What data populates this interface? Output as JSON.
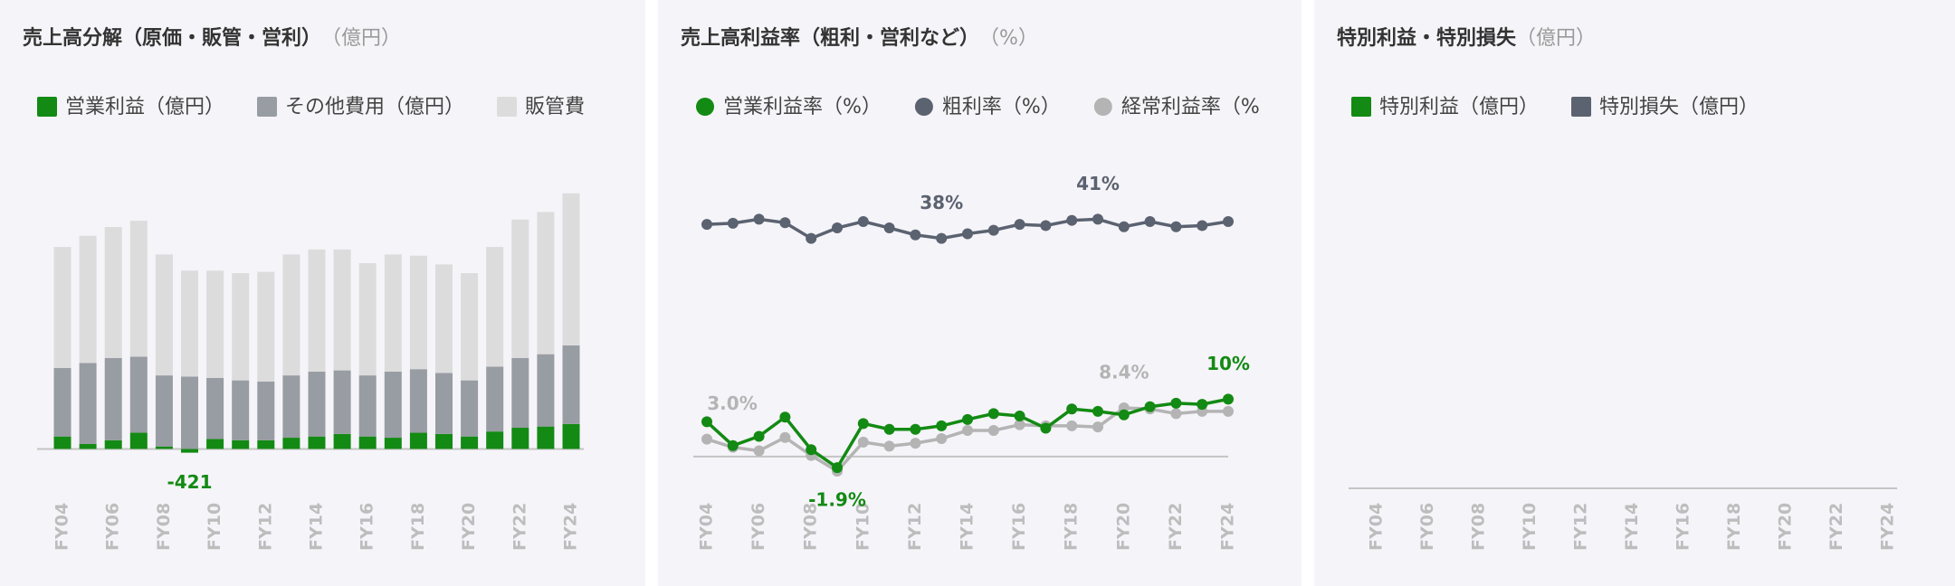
{
  "chart_data": [
    {
      "type": "bar",
      "stacked": true,
      "title": "売上高分解（原価・販管・営利）",
      "unit_label": "（億円）",
      "categories": [
        "FY04",
        null,
        "FY06",
        null,
        "FY08",
        null,
        "FY10",
        null,
        "FY12",
        null,
        "FY14",
        null,
        "FY16",
        null,
        "FY18",
        null,
        "FY20",
        null,
        "FY22",
        null,
        "FY24"
      ],
      "series": [
        {
          "name": "営業利益（億円）",
          "color": "#138a13",
          "values": [
            1400,
            560,
            980,
            1820,
            280,
            -421,
            1120,
            980,
            980,
            1260,
            1400,
            1680,
            1400,
            1260,
            1820,
            1680,
            1400,
            1960,
            2380,
            2520,
            2800
          ],
          "value_labels": [
            null,
            null,
            null,
            null,
            null,
            "-421",
            null,
            null,
            null,
            null,
            null,
            null,
            null,
            null,
            null,
            null,
            null,
            null,
            null,
            null,
            null
          ]
        },
        {
          "name": "その他費用（億円）",
          "color": "#989ca3",
          "values": [
            7700,
            9100,
            9240,
            8540,
            7980,
            8120,
            6860,
            6720,
            6580,
            7000,
            7280,
            7140,
            6860,
            7420,
            7140,
            6860,
            6300,
            7280,
            7840,
            8120,
            8820
          ]
        },
        {
          "name": "販管費",
          "color": "#dcdcdc",
          "values": [
            13580,
            14280,
            14700,
            15260,
            13580,
            11900,
            12040,
            12040,
            12320,
            13580,
            13720,
            13580,
            12600,
            13160,
            12740,
            12180,
            12040,
            13440,
            15540,
            15960,
            17080
          ]
        }
      ],
      "ylim": [
        -3000,
        30000
      ]
    },
    {
      "type": "line",
      "title": "売上高利益率（粗利・営利など）",
      "unit_label": "（%）",
      "categories": [
        "FY04",
        null,
        "FY06",
        null,
        "FY08",
        null,
        "FY10",
        null,
        "FY12",
        null,
        "FY14",
        null,
        "FY16",
        null,
        "FY18",
        null,
        "FY20",
        null,
        "FY22",
        null,
        "FY24"
      ],
      "series": [
        {
          "name": "営業利益率（%）",
          "color": "#138a13",
          "values": [
            6.0,
            1.9,
            3.5,
            6.8,
            1.2,
            -1.9,
            5.7,
            4.7,
            4.7,
            5.3,
            6.4,
            7.4,
            7.0,
            4.9,
            8.2,
            7.8,
            7.2,
            8.6,
            9.2,
            9.0,
            9.9
          ],
          "value_labels": [
            null,
            null,
            null,
            null,
            null,
            "-1.9%",
            null,
            null,
            null,
            null,
            null,
            null,
            null,
            null,
            null,
            null,
            null,
            null,
            null,
            null,
            "10%"
          ]
        },
        {
          "name": "粗利率（%）",
          "color": "#5b6270",
          "values": [
            40.0,
            40.2,
            40.9,
            40.3,
            37.6,
            39.4,
            40.5,
            39.4,
            38.2,
            37.6,
            38.4,
            39.0,
            40.0,
            39.8,
            40.7,
            40.9,
            39.6,
            40.5,
            39.6,
            39.8,
            40.5
          ],
          "value_labels": [
            null,
            null,
            null,
            null,
            null,
            null,
            null,
            null,
            null,
            "38%",
            null,
            null,
            null,
            null,
            null,
            "41%",
            null,
            null,
            null,
            null,
            null
          ]
        },
        {
          "name": "経常利益率（%）",
          "color": "#b4b4b4",
          "values": [
            3.0,
            1.6,
            1.0,
            3.3,
            0.2,
            -2.5,
            2.5,
            1.8,
            2.3,
            3.1,
            4.5,
            4.5,
            5.5,
            5.3,
            5.3,
            5.1,
            8.4,
            8.2,
            7.4,
            7.8,
            7.8
          ],
          "value_labels": [
            "3.0%",
            null,
            null,
            null,
            null,
            null,
            null,
            null,
            null,
            null,
            null,
            null,
            null,
            null,
            null,
            null,
            "8.4%",
            null,
            null,
            null,
            null
          ]
        }
      ],
      "ylim": [
        -5,
        50
      ]
    },
    {
      "type": "bar",
      "title": "特別利益・特別損失",
      "unit_label": "（億円）",
      "categories": [
        "FY04",
        null,
        "FY06",
        null,
        "FY08",
        null,
        "FY10",
        null,
        "FY12",
        null,
        "FY14",
        null,
        "FY16",
        null,
        "FY18",
        null,
        "FY20",
        null,
        "FY22",
        null,
        "FY24"
      ],
      "series": [
        {
          "name": "特別利益（億円）",
          "color": "#138a13",
          "values": [
            null,
            null,
            null,
            null,
            null,
            null,
            null,
            null,
            null,
            null,
            null,
            null,
            null,
            null,
            null,
            null,
            null,
            null,
            null,
            null,
            null
          ]
        },
        {
          "name": "特別損失（億円）",
          "color": "#5b6270",
          "values": [
            null,
            null,
            null,
            null,
            null,
            null,
            null,
            null,
            null,
            null,
            null,
            null,
            null,
            null,
            null,
            null,
            null,
            null,
            null,
            null,
            null
          ]
        }
      ]
    }
  ]
}
